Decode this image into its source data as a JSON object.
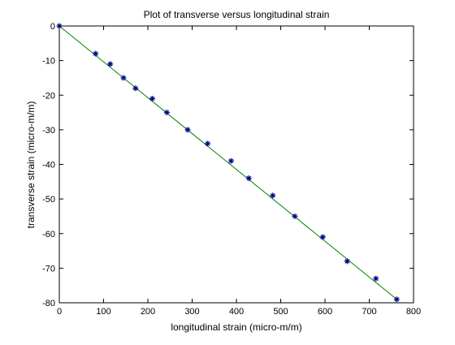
{
  "chart_data": {
    "type": "scatter",
    "title": "Plot of transverse versus longitudinal strain",
    "xlabel": "longitudinal strain (micro-m/m)",
    "ylabel": "transverse strain (micro-m/m)",
    "xlim": [
      0,
      800
    ],
    "ylim": [
      -80,
      0
    ],
    "xticks": [
      0,
      100,
      200,
      300,
      400,
      500,
      600,
      700,
      800
    ],
    "yticks": [
      0,
      -10,
      -20,
      -30,
      -40,
      -50,
      -60,
      -70,
      -80
    ],
    "grid": false,
    "series": [
      {
        "marker": "asterisk",
        "color": "#00008b",
        "x": [
          0,
          82,
          115,
          145,
          172,
          210,
          243,
          290,
          335,
          388,
          428,
          482,
          532,
          595,
          650,
          715,
          762
        ],
        "y": [
          0,
          -8,
          -11,
          -15,
          -18,
          -21,
          -25,
          -30,
          -34,
          -39,
          -44,
          -49,
          -55,
          -61,
          -68,
          -73,
          -79
        ]
      },
      {
        "marker": "line",
        "color": "#008000",
        "x": [
          0,
          762
        ],
        "y": [
          0,
          -79
        ]
      }
    ]
  }
}
